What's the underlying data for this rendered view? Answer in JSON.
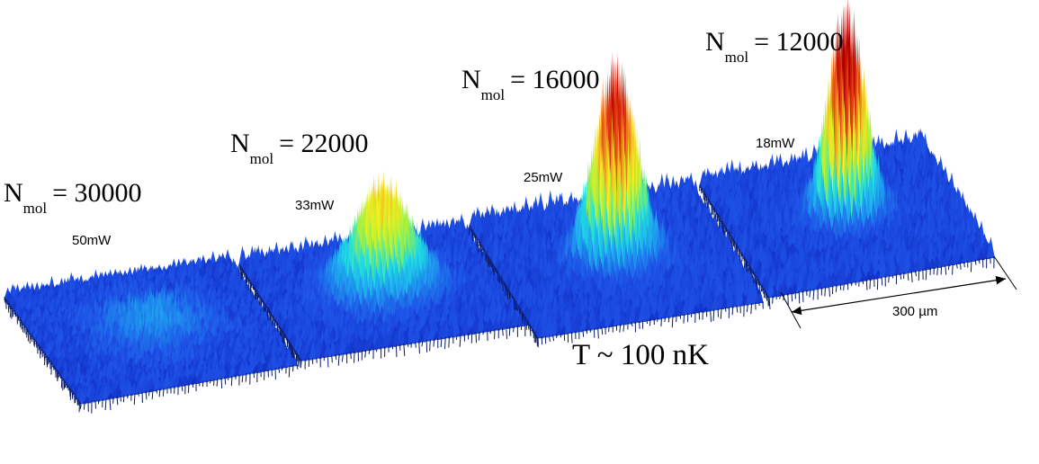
{
  "panels": [
    {
      "n_symbol": "N",
      "n_sub": "mol",
      "n_value": "= 30000",
      "power": "50mW",
      "peak": 0.14
    },
    {
      "n_symbol": "N",
      "n_sub": "mol",
      "n_value": "= 22000",
      "power": "33mW",
      "peak": 0.62
    },
    {
      "n_symbol": "N",
      "n_sub": "mol",
      "n_value": "= 16000",
      "power": "25mW",
      "peak": 0.9
    },
    {
      "n_symbol": "N",
      "n_sub": "mol",
      "n_value": "= 12000",
      "power": "18mW",
      "peak": 1.0
    }
  ],
  "temperature": "T ~ 100 nK",
  "scale_bar": "300 µm",
  "colormap": [
    "#0a1fb4",
    "#1e50e6",
    "#1ea0f0",
    "#20e0e0",
    "#a0f040",
    "#f0f020",
    "#f0a020",
    "#e03010",
    "#b00000"
  ]
}
